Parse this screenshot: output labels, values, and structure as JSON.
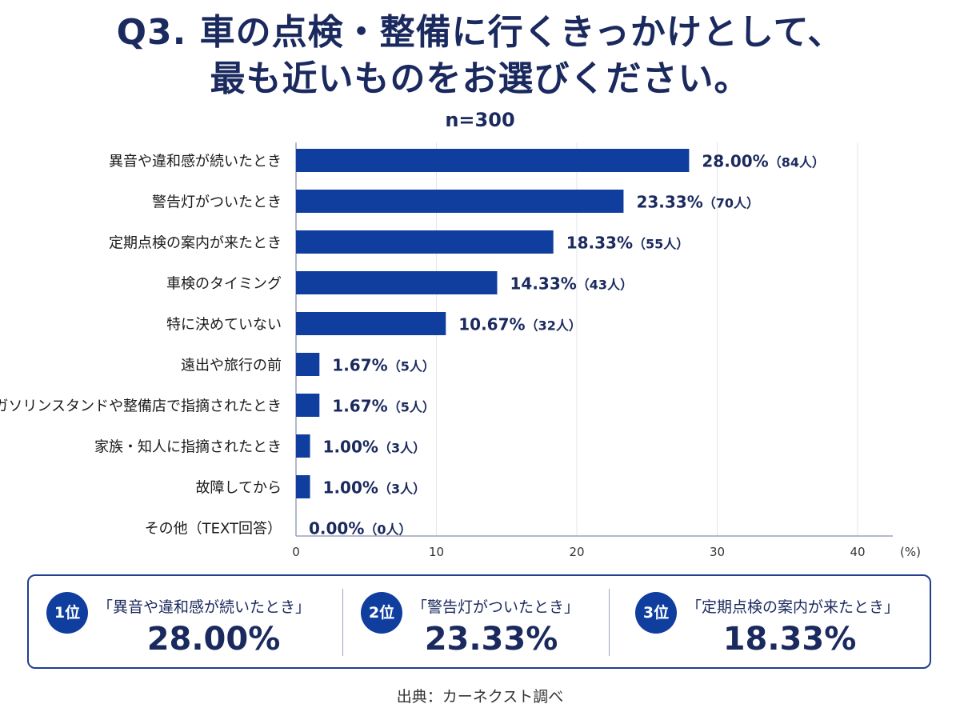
{
  "title_line1": "Q3. 車の点検・整備に行くきっかけとして、",
  "title_line2": "最も近いものをお選びください。",
  "sample_size": "n=300",
  "source": "出典：カーネクスト調べ",
  "colors": {
    "bar": "#0f3e9e",
    "text": "#1b2a5e",
    "grid": "#e3e6ee"
  },
  "chart_data": {
    "type": "bar",
    "orientation": "horizontal",
    "categories": [
      "異音や違和感が続いたとき",
      "警告灯がついたとき",
      "定期点検の案内が来たとき",
      "車検のタイミング",
      "特に決めていない",
      "遠出や旅行の前",
      "ガソリンスタンドや整備店で指摘されたとき",
      "家族・知人に指摘されたとき",
      "故障してから",
      "その他（TEXT回答）"
    ],
    "values": [
      28.0,
      23.33,
      18.33,
      14.33,
      10.67,
      1.67,
      1.67,
      1.0,
      1.0,
      0.0
    ],
    "value_labels": [
      "28.00%",
      "23.33%",
      "18.33%",
      "14.33%",
      "10.67%",
      "1.67%",
      "1.67%",
      "1.00%",
      "1.00%",
      "0.00%"
    ],
    "count_labels": [
      "（84人）",
      "（70人）",
      "（55人）",
      "（43人）",
      "（32人）",
      "（5人）",
      "（5人）",
      "（3人）",
      "（3人）",
      "（0人）"
    ],
    "xlim": [
      0,
      40
    ],
    "xticks": [
      0,
      10,
      20,
      30,
      40
    ],
    "xunit": "(%)",
    "grid": true
  },
  "summary": [
    {
      "rank": "1位",
      "label": "「異音や違和感が続いたとき」",
      "value": "28.00%"
    },
    {
      "rank": "2位",
      "label": "「警告灯がついたとき」",
      "value": "23.33%"
    },
    {
      "rank": "3位",
      "label": "「定期点検の案内が来たとき」",
      "value": "18.33%"
    }
  ]
}
